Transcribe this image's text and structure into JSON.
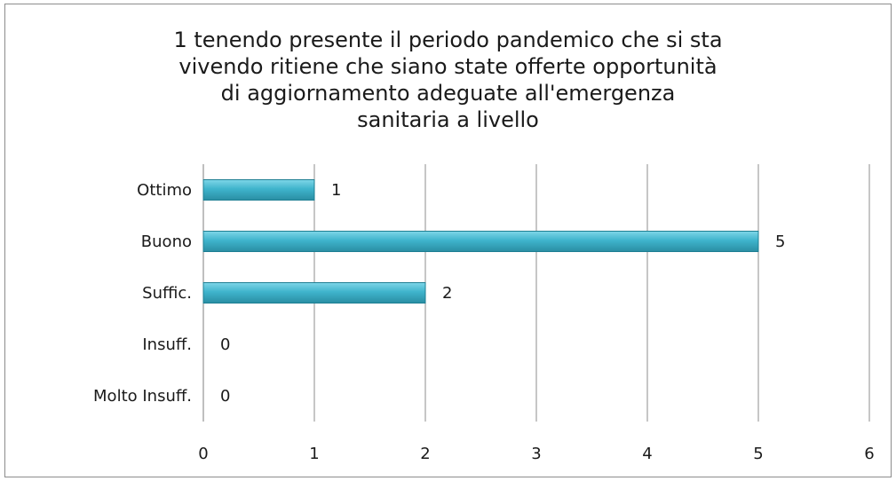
{
  "chart_data": {
    "type": "bar",
    "orientation": "horizontal",
    "title_lines": [
      "1 tenendo presente il periodo pandemico che si sta",
      "vivendo ritiene che siano state offerte opportunità",
      "di aggiornamento adeguate all'emergenza",
      "sanitaria a livello"
    ],
    "categories": [
      "Ottimo",
      "Buono",
      "Suffic.",
      "Insuff.",
      "Molto Insuff."
    ],
    "values": [
      1,
      5,
      2,
      0,
      0
    ],
    "data_labels": [
      "1",
      "5",
      "2",
      "0",
      "0"
    ],
    "x_ticks": [
      "0",
      "1",
      "2",
      "3",
      "4",
      "5",
      "6"
    ],
    "xlim": [
      0,
      6
    ],
    "grid": "vertical",
    "legend": "none",
    "bar_color": "#3fb4cc",
    "bar_edge_color": "#1e7f93"
  }
}
